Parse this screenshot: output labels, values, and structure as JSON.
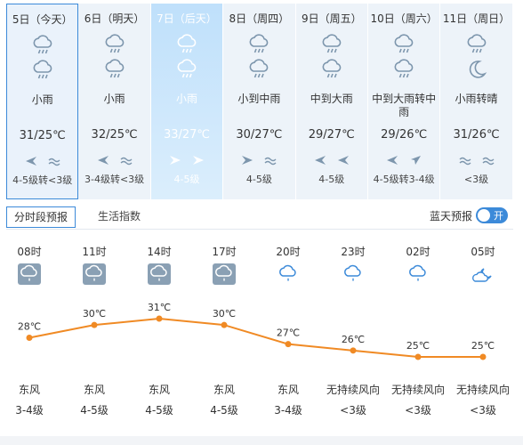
{
  "colors": {
    "accent": "#3c8ad9",
    "line": "#f08a24",
    "icon_blue": "#3c8ad9",
    "icon_gray": "#7d96ad"
  },
  "days": [
    {
      "date": "5日（今天）",
      "icons": [
        "rain-icon",
        "rain-icon"
      ],
      "desc": "小雨",
      "temp": "31/25℃",
      "winds": [
        "wind-arrow-left-icon",
        "breeze-icon"
      ],
      "wind_level": "4-5级转<3级"
    },
    {
      "date": "6日（明天）",
      "icons": [
        "rain-icon",
        "rain-icon"
      ],
      "desc": "小雨",
      "temp": "32/25℃",
      "winds": [
        "wind-arrow-left-icon",
        "breeze-icon"
      ],
      "wind_level": "3-4级转<3级"
    },
    {
      "date": "7日（后天）",
      "icons": [
        "rain-icon",
        "rain-icon"
      ],
      "desc": "小雨",
      "temp": "33/27℃",
      "winds": [
        "wind-arrow-right-icon",
        "wind-arrow-right-icon"
      ],
      "wind_level": "4-5级"
    },
    {
      "date": "8日（周四）",
      "icons": [
        "rain-icon",
        "rain-icon"
      ],
      "desc": "小到中雨",
      "temp": "30/27℃",
      "winds": [
        "wind-arrow-right-icon",
        "breeze-icon"
      ],
      "wind_level": "4-5级"
    },
    {
      "date": "9日（周五）",
      "icons": [
        "rain-icon",
        "rain-icon"
      ],
      "desc": "中到大雨",
      "temp": "29/27℃",
      "winds": [
        "wind-arrow-left-icon",
        "wind-arrow-left-icon"
      ],
      "wind_level": "4-5级"
    },
    {
      "date": "10日（周六）",
      "icons": [
        "rain-icon",
        "rain-icon"
      ],
      "desc": "中到大雨转中雨",
      "temp": "29/26℃",
      "winds": [
        "wind-arrow-left-icon",
        "wind-arrow-up-right-icon"
      ],
      "wind_level": "4-5级转3-4级"
    },
    {
      "date": "11日（周日）",
      "icons": [
        "rain-icon",
        "moon-icon"
      ],
      "desc": "小雨转晴",
      "temp": "31/26℃",
      "winds": [
        "breeze-icon",
        "breeze-icon"
      ],
      "wind_level": "<3级"
    }
  ],
  "tabs": {
    "hourly": "分时段预报",
    "index": "生活指数"
  },
  "bluesky": {
    "label": "蓝天预报",
    "toggle": "开"
  },
  "hourly": [
    {
      "time": "08时",
      "icon": "rain-cloud-boxed-icon",
      "temp": 28,
      "temp_label": "28℃",
      "wind_dir": "东风",
      "wind_level": "3-4级"
    },
    {
      "time": "11时",
      "icon": "rain-cloud-boxed-icon",
      "temp": 30,
      "temp_label": "30℃",
      "wind_dir": "东风",
      "wind_level": "4-5级"
    },
    {
      "time": "14时",
      "icon": "rain-cloud-boxed-icon",
      "temp": 31,
      "temp_label": "31℃",
      "wind_dir": "东风",
      "wind_level": "4-5级"
    },
    {
      "time": "17时",
      "icon": "rain-cloud-boxed-icon",
      "temp": 30,
      "temp_label": "30℃",
      "wind_dir": "东风",
      "wind_level": "4-5级"
    },
    {
      "time": "20时",
      "icon": "rain-cloud-icon",
      "temp": 27,
      "temp_label": "27℃",
      "wind_dir": "东风",
      "wind_level": "3-4级"
    },
    {
      "time": "23时",
      "icon": "rain-cloud-icon",
      "temp": 26,
      "temp_label": "26℃",
      "wind_dir": "无持续风向",
      "wind_level": "<3级"
    },
    {
      "time": "02时",
      "icon": "rain-cloud-icon",
      "temp": 25,
      "temp_label": "25℃",
      "wind_dir": "无持续风向",
      "wind_level": "<3级"
    },
    {
      "time": "05时",
      "icon": "cloud-moon-icon",
      "temp": 25,
      "temp_label": "25℃",
      "wind_dir": "无持续风向",
      "wind_level": "<3级"
    }
  ]
}
